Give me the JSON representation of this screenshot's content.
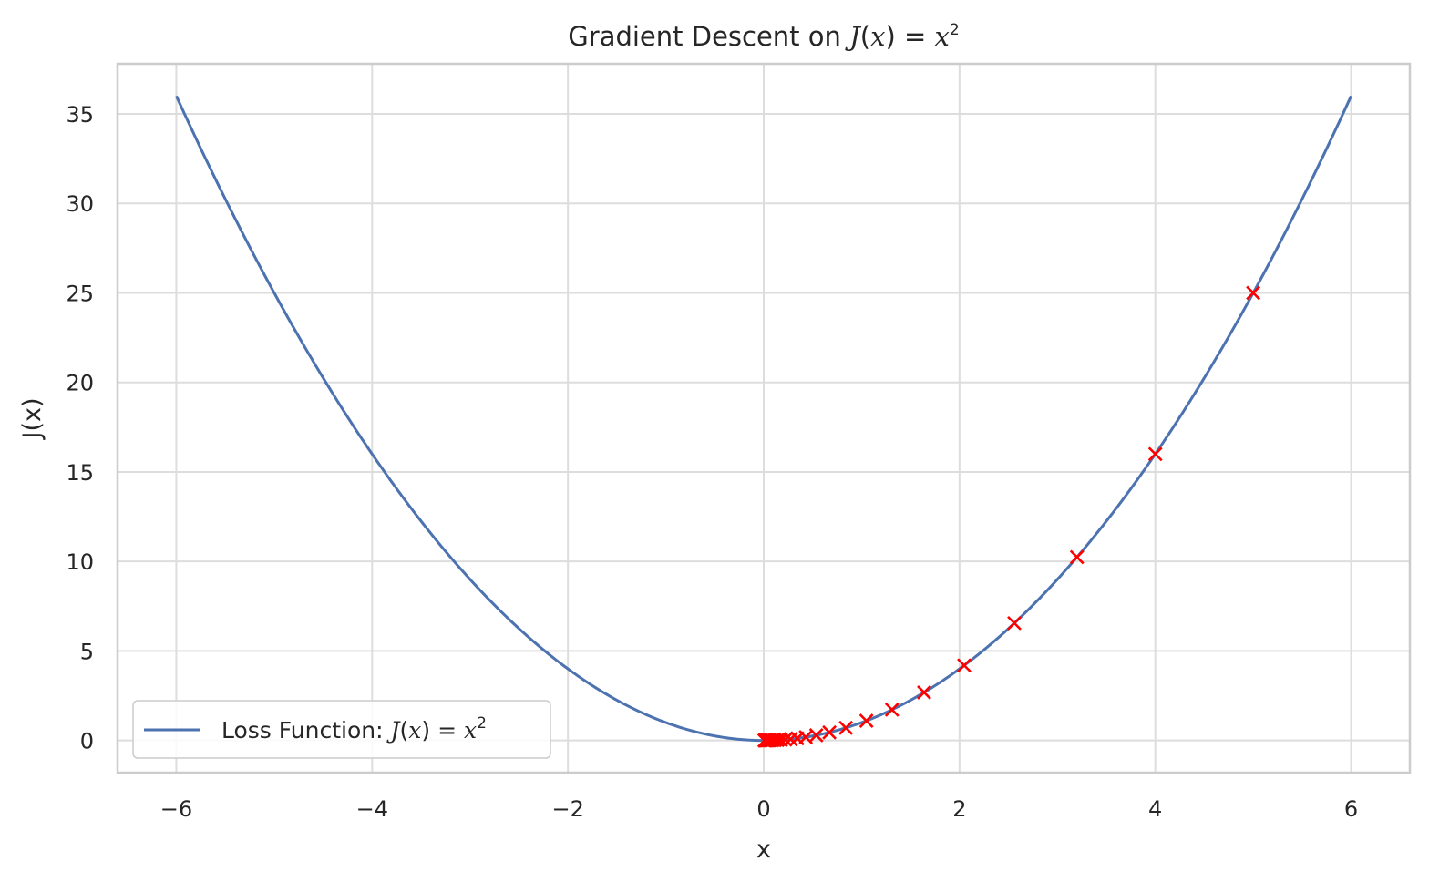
{
  "chart_data": {
    "type": "line",
    "title": "Gradient Descent on J(x) = x²",
    "title_parts": {
      "prefix": "Gradient Descent on ",
      "func": "J",
      "var": "x",
      "exp": "2"
    },
    "xlabel": "x",
    "ylabel": "J(x)",
    "xlim": [
      -6.6,
      6.6
    ],
    "ylim": [
      -1.8,
      37.8
    ],
    "xticks": [
      -6,
      -4,
      -2,
      0,
      2,
      4,
      6
    ],
    "xtick_labels": [
      "−6",
      "−4",
      "−2",
      "0",
      "2",
      "4",
      "6"
    ],
    "yticks": [
      0,
      5,
      10,
      15,
      20,
      25,
      30,
      35
    ],
    "ytick_labels": [
      "0",
      "5",
      "10",
      "15",
      "20",
      "25",
      "30",
      "35"
    ],
    "grid": true,
    "legend_position": "lower-left",
    "series": [
      {
        "kind": "curve",
        "name": "Loss Function: J(x) = x²",
        "name_parts": {
          "prefix": "Loss Function: ",
          "func": "J",
          "var": "x",
          "exp": "2"
        },
        "function": "x^2",
        "x_range": [
          -6,
          6
        ],
        "color": "#4c72b0"
      },
      {
        "kind": "markers",
        "marker": "x",
        "color": "#ff0000",
        "x": [
          5,
          4,
          3.2,
          2.56,
          2.048,
          1.6384,
          1.31072,
          1.048576,
          0.838861,
          0.671089,
          0.536871,
          0.429497,
          0.343597,
          0.274878,
          0.219902,
          0.175922,
          0.140737,
          0.11259,
          0.090072,
          0.072058,
          0.057646,
          0.046117,
          0.036893,
          0.029515,
          0.023612,
          0.01889,
          0.015112,
          0.012089,
          0.009671,
          0.007737
        ],
        "y": [
          25,
          16,
          10.24,
          6.5536,
          4.194304,
          2.684355,
          1.717987,
          1.099512,
          0.703687,
          0.45036,
          0.28823,
          0.184467,
          0.118059,
          0.075558,
          0.048357,
          0.030949,
          0.019807,
          0.012677,
          0.008113,
          0.005192,
          0.003323,
          0.002127,
          0.001361,
          0.000871,
          0.000558,
          0.000357,
          0.000228,
          0.000146,
          9.4e-05,
          6e-05
        ]
      }
    ]
  }
}
